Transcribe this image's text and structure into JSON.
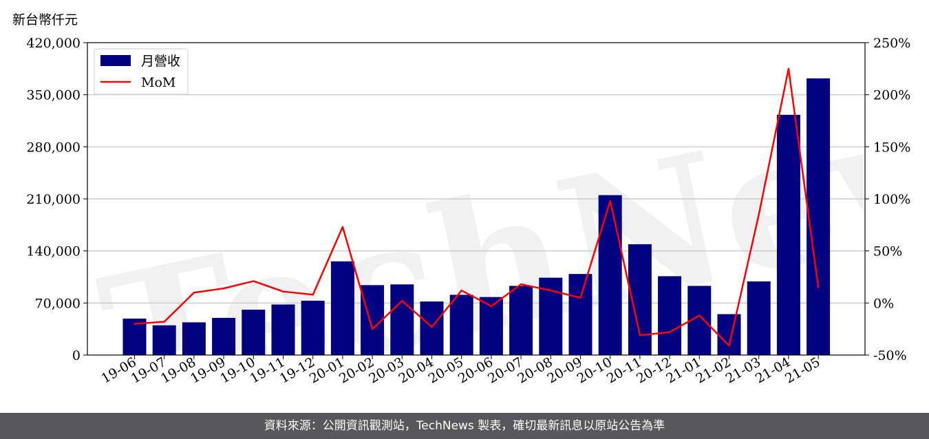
{
  "unit_label": "新台幣仟元",
  "footer_text": "資料來源：公開資訊觀測站，TechNews 製表，確切最新訊息以原站公告為準",
  "watermark": "TechNews",
  "colors": {
    "bar": "#000080",
    "line": "#ff0000",
    "footer_bg": "#58585a",
    "grid": "#cccccc"
  },
  "chart_data": {
    "type": "bar",
    "categories": [
      "19-06",
      "19-07",
      "19-08",
      "19-09",
      "19-10",
      "19-11",
      "19-12",
      "20-01",
      "20-02",
      "20-03",
      "20-04",
      "20-05",
      "20-06",
      "20-07",
      "20-08",
      "20-09",
      "20-10",
      "20-11",
      "20-12",
      "21-01",
      "21-02",
      "21-03",
      "21-04",
      "21-05"
    ],
    "series": [
      {
        "name": "月營收",
        "type": "bar",
        "axis": "left",
        "values": [
          49000,
          40000,
          44000,
          50000,
          61000,
          68000,
          73000,
          126000,
          94000,
          95000,
          72000,
          81000,
          78000,
          93000,
          104000,
          109000,
          215000,
          149000,
          106000,
          93000,
          55000,
          99000,
          323000,
          372000
        ]
      },
      {
        "name": "MoM",
        "type": "line",
        "axis": "right",
        "values": [
          -20,
          -18,
          10,
          14,
          21,
          11,
          8,
          73,
          -25,
          2,
          -23,
          12,
          -3,
          18,
          12,
          5,
          98,
          -31,
          -28,
          -12,
          -41,
          85,
          225,
          15
        ]
      }
    ],
    "left_axis": {
      "ylim": [
        0,
        420000
      ],
      "ticks": [
        "0",
        "70,000",
        "140,000",
        "210,000",
        "280,000",
        "350,000",
        "420,000"
      ]
    },
    "right_axis": {
      "ylim": [
        -50,
        250
      ],
      "ticks": [
        "-50%",
        "0%",
        "50%",
        "100%",
        "150%",
        "200%",
        "250%"
      ]
    },
    "grid": "horizontal",
    "legend": "top-left"
  }
}
